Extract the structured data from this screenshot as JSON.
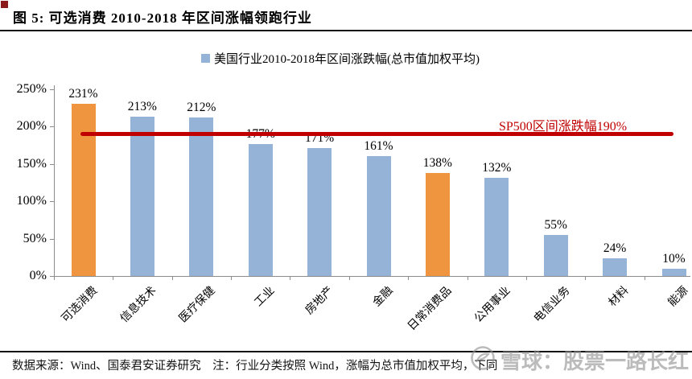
{
  "header": {
    "title": "图 5: 可选消费 2010-2018 年区间涨幅领跑行业"
  },
  "legend": {
    "label": "美国行业2010-2018年区间涨跌幅(总市值加权平均)",
    "swatch_color": "#95B3D7"
  },
  "chart_data": {
    "type": "bar",
    "title": "美国行业2010-2018年区间涨跌幅(总市值加权平均)",
    "categories": [
      "可选消费",
      "信息技术",
      "医疗保健",
      "工业",
      "房地产",
      "金融",
      "日常消费品",
      "公用事业",
      "电信业务",
      "材料",
      "能源"
    ],
    "values": [
      231,
      213,
      212,
      177,
      171,
      161,
      138,
      132,
      55,
      24,
      10
    ],
    "value_labels": [
      "231%",
      "213%",
      "212%",
      "177%",
      "171%",
      "161%",
      "138%",
      "132%",
      "55%",
      "24%",
      "10%"
    ],
    "bar_colors": [
      "#F0953F",
      "#95B3D7",
      "#95B3D7",
      "#95B3D7",
      "#95B3D7",
      "#95B3D7",
      "#F0953F",
      "#95B3D7",
      "#95B3D7",
      "#95B3D7",
      "#95B3D7"
    ],
    "default_color": "#95B3D7",
    "highlight_color": "#F0953F",
    "xlabel": "",
    "ylabel": "",
    "ylim": [
      0,
      250
    ],
    "ytick_labels": [
      "0%",
      "50%",
      "100%",
      "150%",
      "200%",
      "250%"
    ],
    "ytick_values": [
      0,
      50,
      100,
      150,
      200,
      250
    ],
    "grid": false,
    "legend_position": "top-center",
    "reference_line": {
      "value": 190,
      "label": "SP500区间涨跌幅190%",
      "color": "#C00000"
    }
  },
  "footer": {
    "note": "数据来源：Wind、国泰君安证券研究　注：行业分类按照 Wind，涨幅为总市值加权平均，下同"
  },
  "watermark": {
    "text": "雪球：股票一路长红"
  }
}
